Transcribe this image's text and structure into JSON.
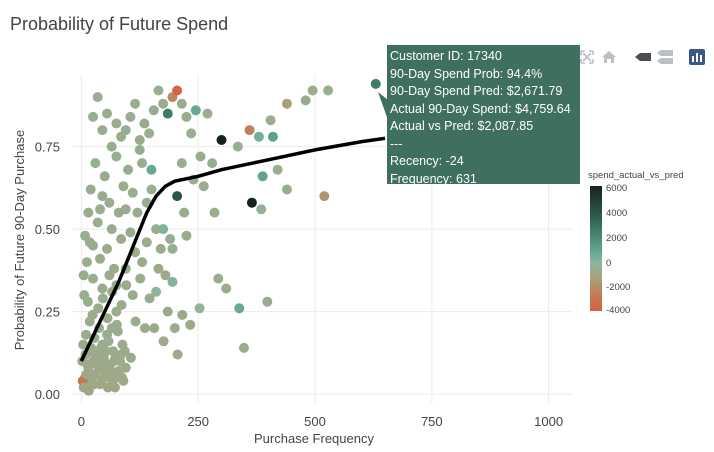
{
  "chart_data": {
    "type": "scatter",
    "title": "Probability of Future Spend",
    "xlabel": "Purchase Frequency",
    "ylabel": "Probability of Future 90-Day Purchase",
    "xlim": [
      -20,
      1050
    ],
    "ylim": [
      -0.03,
      0.97
    ],
    "xticks": [
      0,
      250,
      500,
      750,
      1000
    ],
    "yticks": [
      0,
      0.25,
      0.5,
      0.75
    ],
    "ytick_labels": [
      "0.00",
      "0.25",
      "0.50",
      "0.75"
    ],
    "grid": true,
    "colorbar": {
      "title": "spend_actual_vs_pred",
      "ticks": [
        6000,
        4000,
        2000,
        0,
        -2000,
        -4000
      ],
      "tick_labels": [
        "6000",
        "4000",
        "2000",
        "0",
        "-2000",
        "-4000"
      ],
      "range": [
        -4000,
        6500
      ],
      "colors": [
        "#d5603e",
        "#c47a55",
        "#a8a078",
        "#8eb6a0",
        "#5aa28c",
        "#2f5f4f",
        "#172220"
      ]
    },
    "trend_line": {
      "x": [
        0,
        20,
        40,
        60,
        80,
        100,
        120,
        140,
        160,
        180,
        200,
        250,
        300,
        400,
        500,
        600,
        650
      ],
      "y": [
        0.1,
        0.16,
        0.22,
        0.28,
        0.34,
        0.41,
        0.48,
        0.55,
        0.6,
        0.63,
        0.645,
        0.66,
        0.68,
        0.71,
        0.74,
        0.765,
        0.775
      ]
    },
    "points": [
      {
        "x": 5,
        "y": 0.02,
        "c": 200
      },
      {
        "x": 8,
        "y": 0.05,
        "c": 300
      },
      {
        "x": 12,
        "y": 0.03,
        "c": 150
      },
      {
        "x": 15,
        "y": 0.08,
        "c": 400
      },
      {
        "x": 20,
        "y": 0.04,
        "c": 250
      },
      {
        "x": 25,
        "y": 0.1,
        "c": 350
      },
      {
        "x": 30,
        "y": 0.06,
        "c": 200
      },
      {
        "x": 35,
        "y": 0.12,
        "c": 500
      },
      {
        "x": 40,
        "y": 0.03,
        "c": 300
      },
      {
        "x": 45,
        "y": 0.15,
        "c": 450
      },
      {
        "x": 50,
        "y": 0.08,
        "c": 250
      },
      {
        "x": 55,
        "y": 0.18,
        "c": 600
      },
      {
        "x": 60,
        "y": 0.05,
        "c": 350
      },
      {
        "x": 65,
        "y": 0.2,
        "c": 400
      },
      {
        "x": 70,
        "y": 0.1,
        "c": 300
      },
      {
        "x": 75,
        "y": 0.25,
        "c": 500
      },
      {
        "x": 80,
        "y": 0.07,
        "c": 200
      },
      {
        "x": 85,
        "y": 0.12,
        "c": 350
      },
      {
        "x": 90,
        "y": 0.04,
        "c": 250
      },
      {
        "x": 10,
        "y": 0.18,
        "c": 400
      },
      {
        "x": 18,
        "y": 0.22,
        "c": 500
      },
      {
        "x": 22,
        "y": 0.13,
        "c": 300
      },
      {
        "x": 28,
        "y": 0.17,
        "c": 450
      },
      {
        "x": 33,
        "y": 0.09,
        "c": 250
      },
      {
        "x": 38,
        "y": 0.2,
        "c": 600
      },
      {
        "x": 42,
        "y": 0.14,
        "c": 350
      },
      {
        "x": 48,
        "y": 0.11,
        "c": 300
      },
      {
        "x": 52,
        "y": 0.06,
        "c": 200
      },
      {
        "x": 58,
        "y": 0.16,
        "c": 500
      },
      {
        "x": 62,
        "y": 0.09,
        "c": 250
      },
      {
        "x": 68,
        "y": 0.13,
        "c": 400
      },
      {
        "x": 72,
        "y": 0.02,
        "c": 150
      },
      {
        "x": 78,
        "y": 0.19,
        "c": 450
      },
      {
        "x": 82,
        "y": 0.05,
        "c": 300
      },
      {
        "x": 88,
        "y": 0.15,
        "c": 350
      },
      {
        "x": 95,
        "y": 0.08,
        "c": 250
      },
      {
        "x": 6,
        "y": 0.3,
        "c": 400
      },
      {
        "x": 14,
        "y": 0.28,
        "c": 600
      },
      {
        "x": 24,
        "y": 0.24,
        "c": 350
      },
      {
        "x": 36,
        "y": 0.26,
        "c": 450
      },
      {
        "x": 46,
        "y": 0.29,
        "c": 500
      },
      {
        "x": 56,
        "y": 0.23,
        "c": 300
      },
      {
        "x": 66,
        "y": 0.31,
        "c": 550
      },
      {
        "x": 76,
        "y": 0.21,
        "c": 400
      },
      {
        "x": 86,
        "y": 0.27,
        "c": 350
      },
      {
        "x": 96,
        "y": 0.33,
        "c": 450
      },
      {
        "x": 106,
        "y": 0.11,
        "c": 300
      },
      {
        "x": 116,
        "y": 0.22,
        "c": 400
      },
      {
        "x": 126,
        "y": 0.35,
        "c": 500
      },
      {
        "x": 136,
        "y": 0.2,
        "c": 350
      },
      {
        "x": 146,
        "y": 0.29,
        "c": 450
      },
      {
        "x": 156,
        "y": 0.2,
        "c": 300
      },
      {
        "x": 176,
        "y": 0.16,
        "c": 250
      },
      {
        "x": 206,
        "y": 0.12,
        "c": 200
      },
      {
        "x": 216,
        "y": 0.24,
        "c": 300
      },
      {
        "x": 233,
        "y": 0.21,
        "c": 350
      },
      {
        "x": 253,
        "y": 0.26,
        "c": 900
      },
      {
        "x": 293,
        "y": 0.35,
        "c": 400
      },
      {
        "x": 348,
        "y": 0.14,
        "c": 350
      },
      {
        "x": 338,
        "y": 0.26,
        "c": 2500
      },
      {
        "x": 398,
        "y": 0.28,
        "c": 450
      },
      {
        "x": 8,
        "y": 0.48,
        "c": 600
      },
      {
        "x": 15,
        "y": 0.55,
        "c": 500
      },
      {
        "x": 20,
        "y": 0.62,
        "c": 400
      },
      {
        "x": 25,
        "y": 0.45,
        "c": 350
      },
      {
        "x": 30,
        "y": 0.7,
        "c": 600
      },
      {
        "x": 35,
        "y": 0.52,
        "c": 450
      },
      {
        "x": 40,
        "y": 0.41,
        "c": 300
      },
      {
        "x": 45,
        "y": 0.6,
        "c": 550
      },
      {
        "x": 50,
        "y": 0.66,
        "c": 400
      },
      {
        "x": 55,
        "y": 0.44,
        "c": 350
      },
      {
        "x": 60,
        "y": 0.58,
        "c": 500
      },
      {
        "x": 65,
        "y": 0.5,
        "c": 450
      },
      {
        "x": 70,
        "y": 0.38,
        "c": 300
      },
      {
        "x": 75,
        "y": 0.72,
        "c": 600
      },
      {
        "x": 80,
        "y": 0.55,
        "c": 400
      },
      {
        "x": 85,
        "y": 0.47,
        "c": 350
      },
      {
        "x": 90,
        "y": 0.63,
        "c": 500
      },
      {
        "x": 95,
        "y": 0.56,
        "c": 450
      },
      {
        "x": 100,
        "y": 0.68,
        "c": 550
      },
      {
        "x": 105,
        "y": 0.49,
        "c": 400
      },
      {
        "x": 110,
        "y": 0.61,
        "c": 500
      },
      {
        "x": 115,
        "y": 0.43,
        "c": 350
      },
      {
        "x": 120,
        "y": 0.55,
        "c": 450
      },
      {
        "x": 125,
        "y": 0.74,
        "c": 700
      },
      {
        "x": 130,
        "y": 0.7,
        "c": 600
      },
      {
        "x": 140,
        "y": 0.46,
        "c": 400
      },
      {
        "x": 150,
        "y": 0.62,
        "c": 500
      },
      {
        "x": 160,
        "y": 0.5,
        "c": 450
      },
      {
        "x": 165,
        "y": 0.38,
        "c": 350
      },
      {
        "x": 170,
        "y": 0.44,
        "c": 400
      },
      {
        "x": 175,
        "y": 0.5,
        "c": 1800
      },
      {
        "x": 180,
        "y": 0.36,
        "c": 300
      },
      {
        "x": 190,
        "y": 0.47,
        "c": 500
      },
      {
        "x": 195,
        "y": 0.34,
        "c": 1500
      },
      {
        "x": 205,
        "y": 0.6,
        "c": 5000
      },
      {
        "x": 215,
        "y": 0.7,
        "c": 500
      },
      {
        "x": 220,
        "y": 0.55,
        "c": 400
      },
      {
        "x": 240,
        "y": 0.65,
        "c": 600
      },
      {
        "x": 300,
        "y": 0.77,
        "c": 6500
      },
      {
        "x": 365,
        "y": 0.58,
        "c": 6500
      },
      {
        "x": 335,
        "y": 0.75,
        "c": 800
      },
      {
        "x": 385,
        "y": 0.56,
        "c": 900
      },
      {
        "x": 420,
        "y": 0.68,
        "c": 600
      },
      {
        "x": 440,
        "y": 0.62,
        "c": 500
      },
      {
        "x": 410,
        "y": 0.78,
        "c": 3000
      },
      {
        "x": 388,
        "y": 0.66,
        "c": 2800
      },
      {
        "x": 520,
        "y": 0.6,
        "c": -1000
      },
      {
        "x": 360,
        "y": 0.8,
        "c": -2000
      },
      {
        "x": 380,
        "y": 0.78,
        "c": 2000
      },
      {
        "x": 405,
        "y": 0.83,
        "c": 500
      },
      {
        "x": 440,
        "y": 0.88,
        "c": -500
      },
      {
        "x": 480,
        "y": 0.89,
        "c": 400
      },
      {
        "x": 495,
        "y": 0.92,
        "c": 350
      },
      {
        "x": 528,
        "y": 0.92,
        "c": 600
      },
      {
        "x": 630,
        "y": 0.94,
        "c": 4000
      },
      {
        "x": 25,
        "y": 0.84,
        "c": 500
      },
      {
        "x": 35,
        "y": 0.9,
        "c": 600
      },
      {
        "x": 45,
        "y": 0.8,
        "c": 400
      },
      {
        "x": 55,
        "y": 0.85,
        "c": 450
      },
      {
        "x": 65,
        "y": 0.75,
        "c": 500
      },
      {
        "x": 75,
        "y": 0.82,
        "c": 350
      },
      {
        "x": 85,
        "y": 0.78,
        "c": 400
      },
      {
        "x": 95,
        "y": 0.8,
        "c": 600
      },
      {
        "x": 105,
        "y": 0.84,
        "c": 450
      },
      {
        "x": 115,
        "y": 0.88,
        "c": 500
      },
      {
        "x": 125,
        "y": 0.77,
        "c": 400
      },
      {
        "x": 135,
        "y": 0.82,
        "c": 350
      },
      {
        "x": 145,
        "y": 0.79,
        "c": 500
      },
      {
        "x": 155,
        "y": 0.86,
        "c": 450
      },
      {
        "x": 165,
        "y": 0.92,
        "c": 600
      },
      {
        "x": 175,
        "y": 0.88,
        "c": 500
      },
      {
        "x": 185,
        "y": 0.85,
        "c": 4000
      },
      {
        "x": 195,
        "y": 0.9,
        "c": -1500
      },
      {
        "x": 205,
        "y": 0.92,
        "c": -3500
      },
      {
        "x": 215,
        "y": 0.88,
        "c": 450
      },
      {
        "x": 225,
        "y": 0.84,
        "c": 400
      },
      {
        "x": 235,
        "y": 0.79,
        "c": 500
      },
      {
        "x": 245,
        "y": 0.86,
        "c": 2500
      },
      {
        "x": 255,
        "y": 0.72,
        "c": 350
      },
      {
        "x": 262,
        "y": 0.63,
        "c": 400
      },
      {
        "x": 270,
        "y": 0.85,
        "c": 600
      },
      {
        "x": 280,
        "y": 0.7,
        "c": 500
      },
      {
        "x": 285,
        "y": 0.55,
        "c": 450
      },
      {
        "x": 110,
        "y": 0.3,
        "c": 400
      },
      {
        "x": 95,
        "y": 0.38,
        "c": 500
      },
      {
        "x": 75,
        "y": 0.33,
        "c": 450
      },
      {
        "x": 60,
        "y": 0.36,
        "c": 350
      },
      {
        "x": 45,
        "y": 0.32,
        "c": 400
      },
      {
        "x": 25,
        "y": 0.35,
        "c": 450
      },
      {
        "x": 12,
        "y": 0.4,
        "c": 500
      },
      {
        "x": 5,
        "y": 0.36,
        "c": 400
      },
      {
        "x": 18,
        "y": 0.46,
        "c": 450
      },
      {
        "x": 40,
        "y": 0.56,
        "c": 500
      },
      {
        "x": 140,
        "y": 0.58,
        "c": 600
      },
      {
        "x": 150,
        "y": 0.68,
        "c": 2500
      },
      {
        "x": 130,
        "y": 0.4,
        "c": 450
      },
      {
        "x": 200,
        "y": 0.2,
        "c": 350
      },
      {
        "x": 185,
        "y": 0.25,
        "c": 300
      },
      {
        "x": 160,
        "y": 0.31,
        "c": 1200
      },
      {
        "x": 195,
        "y": 0.44,
        "c": 500
      },
      {
        "x": 225,
        "y": 0.48,
        "c": 400
      },
      {
        "x": 310,
        "y": 0.32,
        "c": 450
      },
      {
        "x": 2,
        "y": 0.1,
        "c": 300
      },
      {
        "x": 4,
        "y": 0.15,
        "c": 350
      },
      {
        "x": 9,
        "y": 0.12,
        "c": 250
      },
      {
        "x": 13,
        "y": 0.09,
        "c": 300
      },
      {
        "x": 17,
        "y": 0.06,
        "c": 200
      },
      {
        "x": 21,
        "y": 0.14,
        "c": 350
      },
      {
        "x": 27,
        "y": 0.03,
        "c": 150
      },
      {
        "x": 32,
        "y": 0.11,
        "c": 300
      },
      {
        "x": 37,
        "y": 0.07,
        "c": 250
      },
      {
        "x": 43,
        "y": 0.04,
        "c": 200
      },
      {
        "x": 47,
        "y": 0.09,
        "c": 300
      },
      {
        "x": 53,
        "y": 0.13,
        "c": 350
      },
      {
        "x": 57,
        "y": 0.02,
        "c": 150
      },
      {
        "x": 63,
        "y": 0.07,
        "c": 250
      },
      {
        "x": 67,
        "y": 0.04,
        "c": 200
      },
      {
        "x": 73,
        "y": 0.11,
        "c": 300
      },
      {
        "x": 77,
        "y": 0.06,
        "c": 250
      },
      {
        "x": 83,
        "y": 0.1,
        "c": 300
      },
      {
        "x": 87,
        "y": 0.05,
        "c": 200
      },
      {
        "x": 93,
        "y": 0.13,
        "c": 350
      },
      {
        "x": 3,
        "y": 0.04,
        "c": -2500
      },
      {
        "x": 7,
        "y": 0.02,
        "c": 150
      },
      {
        "x": 11,
        "y": 0.06,
        "c": 250
      },
      {
        "x": 16,
        "y": 0.01,
        "c": 100
      }
    ]
  },
  "tooltip": {
    "lines": [
      "Customer ID: 17340",
      "90-Day Spend Prob: 94.4%",
      "90-Day Spend Pred: $2,671.79",
      "Actual 90-Day Spend: $4,759.64",
      "Actual vs Pred: $2,087.85",
      "---",
      "Recency: -24",
      "Frequency: 631"
    ]
  },
  "modebar": {
    "icons": [
      "zoom-icon",
      "pan-icon",
      "box-select-icon",
      "lasso-icon",
      "reset-axes-icon",
      "home-icon",
      "hover-closest-icon",
      "hover-compare-icon",
      "plotly-logo-icon"
    ]
  }
}
